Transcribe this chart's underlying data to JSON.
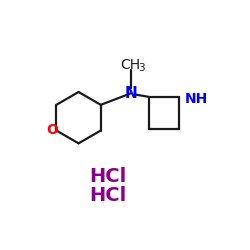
{
  "background_color": "#ffffff",
  "bond_color": "#1a1a1a",
  "N_color": "#0000ff",
  "O_color": "#ff0000",
  "NH_color": "#0000ff",
  "HCl_color": "#8b008b",
  "CH3_text": "CH",
  "CH3_sub": "3",
  "N_text": "N",
  "O_text": "O",
  "NH_text": "NH",
  "HCl1_text": "HCl",
  "HCl2_text": "HCl",
  "figsize": [
    2.5,
    2.5
  ],
  "dpi": 100
}
